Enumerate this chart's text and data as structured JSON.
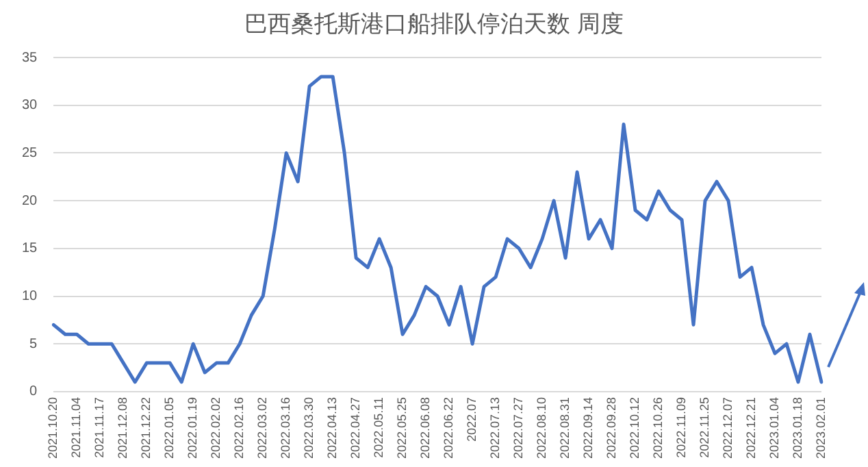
{
  "chart_data": {
    "type": "line",
    "title": "巴西桑托斯港口船排队停泊天数 周度",
    "categories": [
      "2021.10.20",
      null,
      "2021.11.04",
      null,
      "2021.11.17",
      null,
      "2021.12.08",
      null,
      "2021.12.22",
      null,
      "2022.01.05",
      null,
      "2022.01.19",
      null,
      "2022.02.02",
      null,
      "2022.02.16",
      null,
      "2022.03.02",
      null,
      "2022.03.16",
      null,
      "2022.03.30",
      null,
      "2022.04.13",
      null,
      "2022.04.27",
      null,
      "2022.05.11",
      null,
      "2022.05.25",
      null,
      "2022.06.08",
      null,
      "2022.06.22",
      null,
      "2022.07",
      null,
      "2022.07.13",
      null,
      "2022.07.27",
      null,
      "2022.08.10",
      null,
      "2022.08.31",
      null,
      "2022.09.14",
      null,
      "2022.09.28",
      null,
      "2022.10.12",
      null,
      "2022.10.26",
      null,
      "2022.11.09",
      null,
      "2022.11.25",
      null,
      "2022.12.07",
      null,
      "2022.12.21",
      null,
      "2023.01.04",
      null,
      "2023.01.18",
      null,
      "2023.02.01"
    ],
    "series": [
      {
        "color": "#4472c4",
        "values": [
          7,
          6,
          6,
          5,
          5,
          5,
          3,
          1,
          3,
          3,
          3,
          1,
          5,
          2,
          3,
          3,
          5,
          8,
          10,
          17,
          25,
          22,
          32,
          33,
          33,
          25,
          14,
          13,
          16,
          13,
          6,
          8,
          11,
          10,
          7,
          11,
          5,
          11,
          12,
          16,
          15,
          13,
          16,
          20,
          14,
          23,
          16,
          18,
          15,
          28,
          19,
          18,
          21,
          19,
          18,
          7,
          20,
          22,
          20,
          12,
          13,
          7,
          4,
          5,
          1,
          6,
          1
        ]
      }
    ],
    "ylim": [
      0,
      35
    ],
    "yticks": [
      0,
      5,
      10,
      15,
      20,
      25,
      30,
      35
    ],
    "grid": "y",
    "legend": false,
    "marker": "none",
    "line_style": "solid"
  }
}
